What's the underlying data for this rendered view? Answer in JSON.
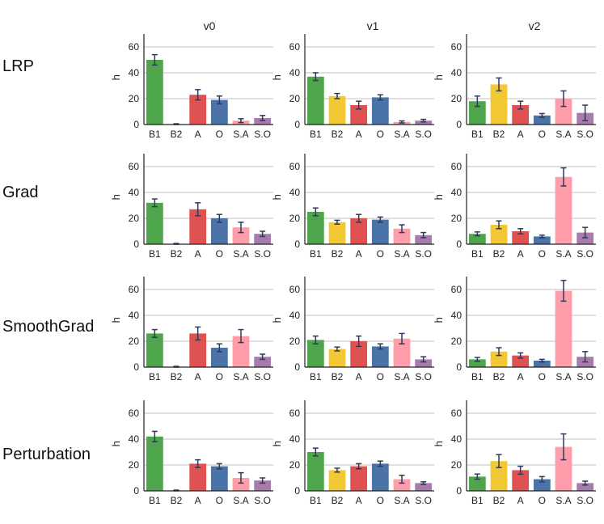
{
  "column_titles": [
    "v0",
    "v1",
    "v2"
  ],
  "row_labels": [
    "LRP",
    "Grad",
    "SmoothGrad",
    "Perturbation"
  ],
  "colors": {
    "B1": "#4fa54c",
    "B2": "#f2c935",
    "A": "#e05252",
    "O": "#4a74a8",
    "S.A": "#ff9daa",
    "S.O": "#a77bab",
    "error_bar": "#2d3a5a",
    "axis": "#222222",
    "grid": "#bfbfbf"
  },
  "chart_data": [
    {
      "type": "bar",
      "row": "LRP",
      "col": "v0",
      "categories": [
        "B1",
        "B2",
        "A",
        "O",
        "S.A",
        "S.O"
      ],
      "values": [
        50,
        0.3,
        23,
        19,
        3,
        5
      ],
      "errors": [
        4,
        0.3,
        4,
        3,
        1.5,
        2
      ],
      "ylabel": "h",
      "ylim": [
        0,
        70
      ],
      "yticks": [
        0,
        20,
        40,
        60
      ]
    },
    {
      "type": "bar",
      "row": "LRP",
      "col": "v1",
      "categories": [
        "B1",
        "B2",
        "A",
        "O",
        "S.A",
        "S.O"
      ],
      "values": [
        37,
        22,
        15,
        21,
        2,
        3
      ],
      "errors": [
        3,
        2,
        3,
        2,
        0.8,
        1
      ],
      "ylabel": "h",
      "ylim": [
        0,
        70
      ],
      "yticks": [
        0,
        20,
        40,
        60
      ]
    },
    {
      "type": "bar",
      "row": "LRP",
      "col": "v2",
      "categories": [
        "B1",
        "B2",
        "A",
        "O",
        "S.A",
        "S.O"
      ],
      "values": [
        18,
        31,
        15,
        7,
        20,
        9
      ],
      "errors": [
        4,
        5,
        3,
        1.5,
        6,
        6
      ],
      "ylabel": "h",
      "ylim": [
        0,
        70
      ],
      "yticks": [
        0,
        20,
        40,
        60
      ]
    },
    {
      "type": "bar",
      "row": "Grad",
      "col": "v0",
      "categories": [
        "B1",
        "B2",
        "A",
        "O",
        "S.A",
        "S.O"
      ],
      "values": [
        32,
        0.3,
        27,
        20,
        13,
        8
      ],
      "errors": [
        3,
        0.3,
        5,
        3,
        4,
        2
      ],
      "ylabel": "h",
      "ylim": [
        0,
        70
      ],
      "yticks": [
        0,
        20,
        40,
        60
      ]
    },
    {
      "type": "bar",
      "row": "Grad",
      "col": "v1",
      "categories": [
        "B1",
        "B2",
        "A",
        "O",
        "S.A",
        "S.O"
      ],
      "values": [
        25,
        17,
        20,
        19,
        12,
        7
      ],
      "errors": [
        3,
        1.5,
        3,
        2,
        3,
        2
      ],
      "ylabel": "h",
      "ylim": [
        0,
        70
      ],
      "yticks": [
        0,
        20,
        40,
        60
      ]
    },
    {
      "type": "bar",
      "row": "Grad",
      "col": "v2",
      "categories": [
        "B1",
        "B2",
        "A",
        "O",
        "S.A",
        "S.O"
      ],
      "values": [
        8,
        15,
        10,
        6,
        52,
        9
      ],
      "errors": [
        1.5,
        3,
        2,
        1,
        7,
        4
      ],
      "ylabel": "h",
      "ylim": [
        0,
        70
      ],
      "yticks": [
        0,
        20,
        40,
        60
      ]
    },
    {
      "type": "bar",
      "row": "SmoothGrad",
      "col": "v0",
      "categories": [
        "B1",
        "B2",
        "A",
        "O",
        "S.A",
        "S.O"
      ],
      "values": [
        26,
        0.3,
        26,
        15,
        24,
        8
      ],
      "errors": [
        3,
        0.3,
        5,
        3,
        5,
        2
      ],
      "ylabel": "h",
      "ylim": [
        0,
        70
      ],
      "yticks": [
        0,
        20,
        40,
        60
      ]
    },
    {
      "type": "bar",
      "row": "SmoothGrad",
      "col": "v1",
      "categories": [
        "B1",
        "B2",
        "A",
        "O",
        "S.A",
        "S.O"
      ],
      "values": [
        21,
        14,
        20,
        16,
        22,
        6
      ],
      "errors": [
        3,
        1.5,
        4,
        2,
        4,
        2
      ],
      "ylabel": "h",
      "ylim": [
        0,
        70
      ],
      "yticks": [
        0,
        20,
        40,
        60
      ]
    },
    {
      "type": "bar",
      "row": "SmoothGrad",
      "col": "v2",
      "categories": [
        "B1",
        "B2",
        "A",
        "O",
        "S.A",
        "S.O"
      ],
      "values": [
        6,
        12,
        9,
        5,
        59,
        8
      ],
      "errors": [
        1.5,
        3,
        2,
        1,
        8,
        4
      ],
      "ylabel": "h",
      "ylim": [
        0,
        70
      ],
      "yticks": [
        0,
        20,
        40,
        60
      ]
    },
    {
      "type": "bar",
      "row": "Perturbation",
      "col": "v0",
      "categories": [
        "B1",
        "B2",
        "A",
        "O",
        "S.A",
        "S.O"
      ],
      "values": [
        42,
        0.3,
        21,
        19,
        10,
        8
      ],
      "errors": [
        4,
        0.3,
        3,
        2,
        4,
        2
      ],
      "ylabel": "h",
      "ylim": [
        0,
        70
      ],
      "yticks": [
        0,
        20,
        40,
        60
      ]
    },
    {
      "type": "bar",
      "row": "Perturbation",
      "col": "v1",
      "categories": [
        "B1",
        "B2",
        "A",
        "O",
        "S.A",
        "S.O"
      ],
      "values": [
        30,
        16,
        19,
        21,
        9,
        6
      ],
      "errors": [
        3,
        1.5,
        2,
        2,
        3,
        1
      ],
      "ylabel": "h",
      "ylim": [
        0,
        70
      ],
      "yticks": [
        0,
        20,
        40,
        60
      ]
    },
    {
      "type": "bar",
      "row": "Perturbation",
      "col": "v2",
      "categories": [
        "B1",
        "B2",
        "A",
        "O",
        "S.A",
        "S.O"
      ],
      "values": [
        11,
        23,
        16,
        9,
        34,
        6
      ],
      "errors": [
        2,
        5,
        3,
        2,
        10,
        1.5
      ],
      "ylabel": "h",
      "ylim": [
        0,
        70
      ],
      "yticks": [
        0,
        20,
        40,
        60
      ]
    }
  ]
}
